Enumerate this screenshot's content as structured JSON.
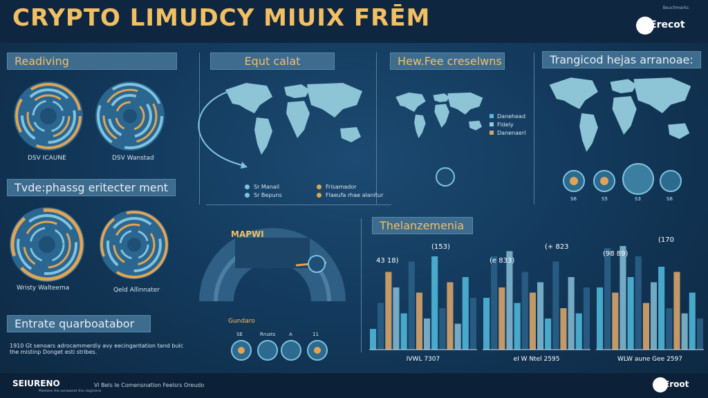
{
  "header": {
    "title": "CRYPTO LIMUDCY MIUIX FRĒM",
    "brand_tag": "Beuchmarks",
    "brand_name": "Erecot"
  },
  "left": {
    "sections": [
      {
        "title": "Readiving",
        "rings": [
          "DSV ICAUNE",
          "DSV Wanstad"
        ]
      },
      {
        "title": "Tvde:phassg eritecter ment",
        "rings": [
          "Wristy Walteema",
          "Qeld Allinnater"
        ]
      },
      {
        "title": "Entrate quarboatabor"
      }
    ],
    "note_line1": "1910 Gt senoars adrocammerdiy avy eecingantation tand bulc",
    "note_line2": "the mistinp Donget esti stribes."
  },
  "maps": {
    "map1_title": "Equt calat",
    "map2_title": "Hew.Fee creselwns",
    "map3_title": "Trangicod hejas arranoae:",
    "legend_a": [
      {
        "label": "Sr Manail",
        "color": "#7fc3e0"
      },
      {
        "label": "Frisamador",
        "color": "#e0a454"
      },
      {
        "label": "Sr Bepuns",
        "color": "#7fc3e0"
      },
      {
        "label": "Flaeufa rhae alanitur",
        "color": "#e0a454"
      }
    ],
    "legend_b": [
      {
        "label": "Danehead",
        "color": "#5bb4e0"
      },
      {
        "label": "Fldely",
        "color": "#9ac8de"
      },
      {
        "label": "Danenaerl",
        "color": "#d7a46a"
      }
    ],
    "icon_labels": [
      "S6",
      "S5",
      "S3",
      "S6"
    ]
  },
  "middle": {
    "dial_label": "MAPWI",
    "guide_title": "Gundaro",
    "guide_items": [
      "SE",
      "Rrusts",
      "A",
      "11"
    ]
  },
  "charts": {
    "section_title": "Thelanzemenia",
    "colors": {
      "teal": "#4fb6d8",
      "navy": "#2b5f86",
      "tan": "#d8a46a",
      "pale": "#7fb7cf"
    },
    "chart_data": [
      {
        "type": "bar",
        "xlabel": "IVWL 7307",
        "annotations": [
          "43 18)",
          "(153)"
        ],
        "series": [
          {
            "values": [
              20,
              45,
              75,
              60,
              35,
              85,
              55,
              30,
              90,
              40,
              65,
              25,
              70,
              50
            ]
          }
        ]
      },
      {
        "type": "bar",
        "xlabel": "eI W Ntel 2595",
        "annotations": [
          "(e 833)",
          "(+ 823"
        ],
        "series": [
          {
            "values": [
              50,
              90,
              60,
              95,
              45,
              75,
              55,
              65,
              30,
              85,
              40,
              70,
              35,
              60
            ]
          }
        ]
      },
      {
        "type": "bar",
        "xlabel": "WLW aune Gee 2597",
        "annotations": [
          "(98 89)",
          "(170"
        ],
        "series": [
          {
            "values": [
              60,
              98,
              55,
              100,
              70,
              90,
              45,
              65,
              80,
              40,
              75,
              35,
              55,
              30
            ]
          }
        ]
      }
    ]
  },
  "footer": {
    "brand": "SEIURENO",
    "sub": "Mastere the sonwanet the siagtreno",
    "text": "Vi Bels Ie Comensnatlon Feelsrs Oreudo",
    "brand_right": "Eroot"
  }
}
